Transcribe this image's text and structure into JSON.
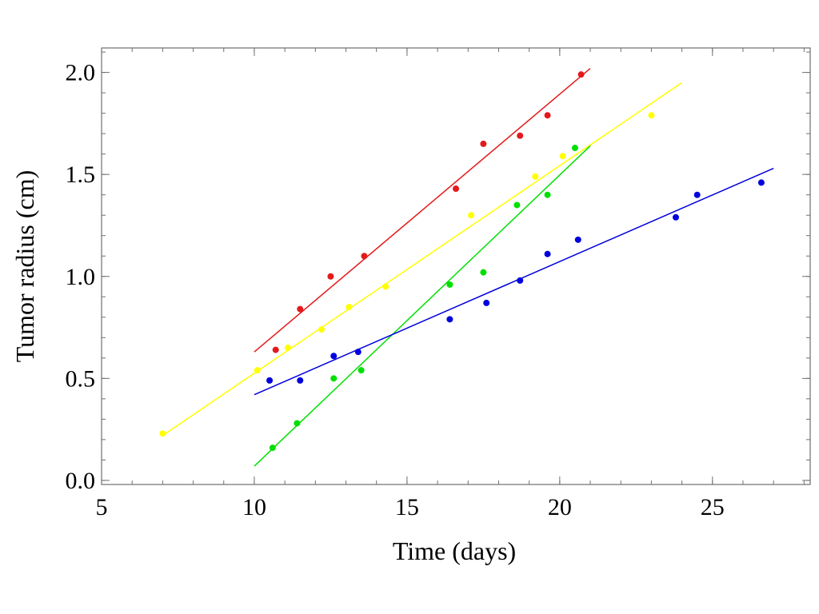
{
  "chart_data": {
    "type": "scatter",
    "xlabel": "Time (days)",
    "ylabel": "Tumor radius (cm)",
    "xlim": [
      5,
      28.2
    ],
    "ylim": [
      -0.02,
      2.12
    ],
    "x_ticks": [
      {
        "value": 5,
        "label": "5"
      },
      {
        "value": 10,
        "label": "10"
      },
      {
        "value": 15,
        "label": "15"
      },
      {
        "value": 20,
        "label": "20"
      },
      {
        "value": 25,
        "label": "25"
      }
    ],
    "y_ticks": [
      {
        "value": 0.0,
        "label": "0.0"
      },
      {
        "value": 0.5,
        "label": "0.5"
      },
      {
        "value": 1.0,
        "label": "1.0"
      },
      {
        "value": 1.5,
        "label": "1.5"
      },
      {
        "value": 2.0,
        "label": "2.0"
      }
    ],
    "x_minor_step": 1,
    "y_minor_step": 0.1,
    "grid": false,
    "legend": "none",
    "series": [
      {
        "color": "#e31a1c",
        "points": [
          {
            "x": 10.7,
            "y": 0.64
          },
          {
            "x": 11.5,
            "y": 0.84
          },
          {
            "x": 12.5,
            "y": 1.0
          },
          {
            "x": 13.6,
            "y": 1.1
          },
          {
            "x": 16.6,
            "y": 1.43
          },
          {
            "x": 17.5,
            "y": 1.65
          },
          {
            "x": 18.7,
            "y": 1.69
          },
          {
            "x": 19.6,
            "y": 1.79
          },
          {
            "x": 20.7,
            "y": 1.99
          }
        ],
        "fit_line": {
          "x": [
            10.0,
            21.0
          ],
          "y": [
            0.63,
            2.02
          ]
        }
      },
      {
        "color": "#ffff00",
        "points": [
          {
            "x": 7.0,
            "y": 0.23
          },
          {
            "x": 10.1,
            "y": 0.54
          },
          {
            "x": 11.1,
            "y": 0.65
          },
          {
            "x": 12.2,
            "y": 0.74
          },
          {
            "x": 13.1,
            "y": 0.85
          },
          {
            "x": 14.3,
            "y": 0.95
          },
          {
            "x": 17.1,
            "y": 1.3
          },
          {
            "x": 19.2,
            "y": 1.49
          },
          {
            "x": 20.1,
            "y": 1.59
          },
          {
            "x": 23.0,
            "y": 1.79
          }
        ],
        "fit_line": {
          "x": [
            7.0,
            24.0
          ],
          "y": [
            0.22,
            1.95
          ]
        }
      },
      {
        "color": "#00e000",
        "points": [
          {
            "x": 10.6,
            "y": 0.16
          },
          {
            "x": 11.4,
            "y": 0.28
          },
          {
            "x": 12.6,
            "y": 0.5
          },
          {
            "x": 13.5,
            "y": 0.54
          },
          {
            "x": 16.4,
            "y": 0.96
          },
          {
            "x": 17.5,
            "y": 1.02
          },
          {
            "x": 18.6,
            "y": 1.35
          },
          {
            "x": 19.6,
            "y": 1.4
          },
          {
            "x": 20.5,
            "y": 1.63
          }
        ],
        "fit_line": {
          "x": [
            10.0,
            21.0
          ],
          "y": [
            0.07,
            1.64
          ]
        }
      },
      {
        "color": "#0000dd",
        "points": [
          {
            "x": 10.5,
            "y": 0.49
          },
          {
            "x": 11.5,
            "y": 0.49
          },
          {
            "x": 12.6,
            "y": 0.61
          },
          {
            "x": 13.4,
            "y": 0.63
          },
          {
            "x": 16.4,
            "y": 0.79
          },
          {
            "x": 17.6,
            "y": 0.87
          },
          {
            "x": 18.7,
            "y": 0.98
          },
          {
            "x": 19.6,
            "y": 1.11
          },
          {
            "x": 20.6,
            "y": 1.18
          },
          {
            "x": 23.8,
            "y": 1.29
          },
          {
            "x": 24.5,
            "y": 1.4
          },
          {
            "x": 26.6,
            "y": 1.46
          }
        ],
        "fit_line": {
          "x": [
            10.0,
            27.0
          ],
          "y": [
            0.42,
            1.53
          ]
        }
      }
    ]
  }
}
